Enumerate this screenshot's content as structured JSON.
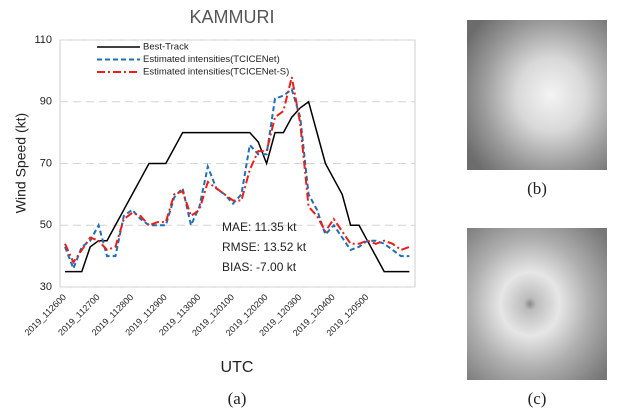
{
  "chart_data": {
    "type": "line",
    "title": "KAMMURI",
    "y_label": "Wind Speed (kt)",
    "x_label": "UTC",
    "categories": [
      "2019_112600",
      null,
      null,
      null,
      "2019_112700",
      null,
      null,
      null,
      "2019_112800",
      null,
      null,
      null,
      "2019_112900",
      null,
      null,
      null,
      "2019_113000",
      null,
      null,
      null,
      "2019_120100",
      null,
      null,
      null,
      "2019_120200",
      null,
      null,
      null,
      "2019_120300",
      null,
      null,
      null,
      "2019_120400",
      null,
      null,
      null,
      "2019_120500",
      null,
      null,
      null,
      null,
      null
    ],
    "series": [
      {
        "name": "Best-Track",
        "color": "#000000",
        "dash": "solid",
        "values": [
          35,
          35,
          35,
          43,
          45,
          45,
          50,
          55,
          60,
          65,
          70,
          70,
          70,
          75,
          80,
          80,
          80,
          80,
          80,
          80,
          80,
          80,
          80,
          77,
          70,
          80,
          80,
          85,
          88,
          90,
          80,
          70,
          65,
          60,
          50,
          50,
          45,
          40,
          35,
          35,
          35,
          35
        ]
      },
      {
        "name": "Estimated intensities(TCICENet)",
        "color": "#1f6fb5",
        "dash": "dash",
        "values": [
          43,
          36,
          43,
          45,
          50,
          40,
          40,
          53,
          55,
          52,
          50,
          50,
          50,
          59,
          62,
          50,
          56,
          69,
          62,
          60,
          57,
          60,
          76,
          73,
          73,
          91,
          92,
          94,
          85,
          60,
          55,
          47,
          50,
          46,
          42,
          43,
          45,
          45,
          44,
          42,
          40,
          40
        ]
      },
      {
        "name": "Estimated intensities(TCICENet-S)",
        "color": "#e8201a",
        "dash": "dashdot",
        "values": [
          44,
          38,
          42,
          46,
          45,
          42,
          43,
          52,
          54,
          53,
          50,
          51,
          51,
          60,
          61,
          53,
          55,
          64,
          62,
          60,
          58,
          58,
          68,
          74,
          74,
          85,
          87,
          98,
          83,
          56,
          53,
          48,
          52,
          48,
          44,
          44,
          45,
          44,
          45,
          44,
          42,
          43
        ]
      }
    ],
    "ylim": [
      30,
      110
    ],
    "yticks": [
      30,
      50,
      70,
      90,
      110
    ],
    "grid": true,
    "annotations": [
      "MAE: 11.35 kt",
      "RMSE: 13.52 kt",
      "BIAS: -7.00 kt"
    ]
  },
  "panels": {
    "a": "(a)",
    "b": "(b)",
    "c": "(c)"
  }
}
